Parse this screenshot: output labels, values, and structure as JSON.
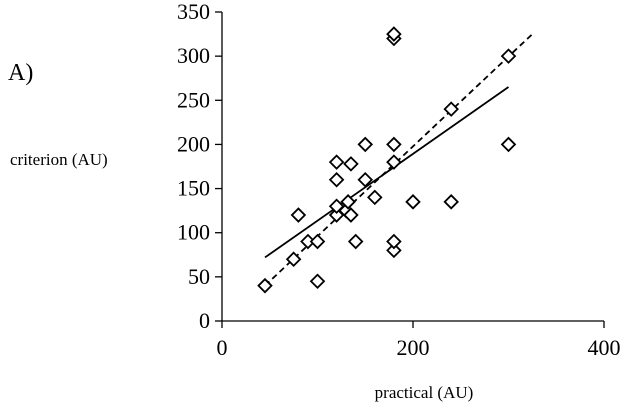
{
  "chart_data": {
    "type": "scatter",
    "panel_label": "A)",
    "xlabel": "practical (AU)",
    "ylabel": "criterion (AU)",
    "xlim": [
      0,
      400
    ],
    "ylim": [
      0,
      350
    ],
    "xticks": [
      0,
      200,
      400
    ],
    "yticks": [
      0,
      50,
      100,
      150,
      200,
      250,
      300,
      350
    ],
    "grid": false,
    "marker": "diamond-open",
    "points": [
      {
        "x": 45,
        "y": 40
      },
      {
        "x": 75,
        "y": 70
      },
      {
        "x": 80,
        "y": 120
      },
      {
        "x": 90,
        "y": 90
      },
      {
        "x": 100,
        "y": 45
      },
      {
        "x": 100,
        "y": 90
      },
      {
        "x": 120,
        "y": 120
      },
      {
        "x": 120,
        "y": 130
      },
      {
        "x": 120,
        "y": 160
      },
      {
        "x": 120,
        "y": 180
      },
      {
        "x": 130,
        "y": 125
      },
      {
        "x": 132,
        "y": 135
      },
      {
        "x": 135,
        "y": 120
      },
      {
        "x": 135,
        "y": 178
      },
      {
        "x": 140,
        "y": 90
      },
      {
        "x": 150,
        "y": 160
      },
      {
        "x": 150,
        "y": 200
      },
      {
        "x": 160,
        "y": 140
      },
      {
        "x": 180,
        "y": 80
      },
      {
        "x": 180,
        "y": 90
      },
      {
        "x": 180,
        "y": 180
      },
      {
        "x": 180,
        "y": 200
      },
      {
        "x": 180,
        "y": 320
      },
      {
        "x": 180,
        "y": 325
      },
      {
        "x": 200,
        "y": 135
      },
      {
        "x": 240,
        "y": 135
      },
      {
        "x": 240,
        "y": 240
      },
      {
        "x": 300,
        "y": 200
      },
      {
        "x": 300,
        "y": 300
      }
    ],
    "lines": [
      {
        "style": "solid",
        "x": [
          45,
          300
        ],
        "y": [
          72,
          265
        ]
      },
      {
        "style": "dashed",
        "x": [
          45,
          325
        ],
        "y": [
          40,
          325
        ]
      }
    ]
  }
}
